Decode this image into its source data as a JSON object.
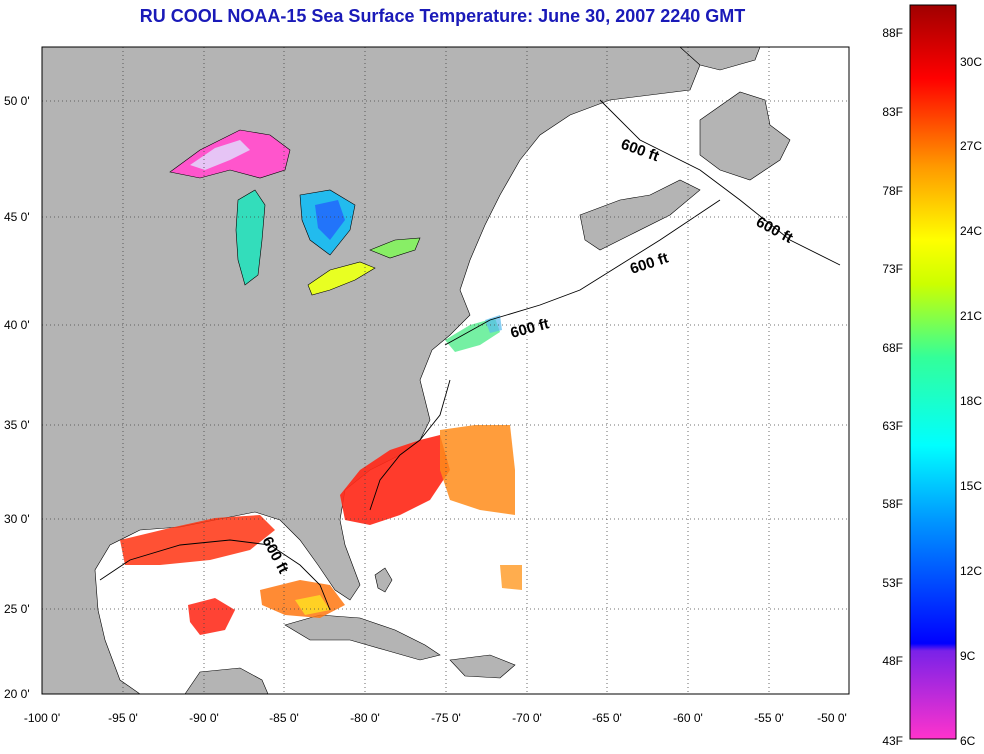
{
  "title": "RU COOL  NOAA-15  Sea Surface Temperature:  June 30, 2007 2240 GMT",
  "lat_ticks": [
    "20 0'",
    "25 0'",
    "30 0'",
    "35 0'",
    "40 0'",
    "45 0'",
    "50 0'"
  ],
  "lon_ticks": [
    "-100 0'",
    "-95 0'",
    "-90 0'",
    "-85 0'",
    "-80 0'",
    "-75 0'",
    "-70 0'",
    "-65 0'",
    "-60 0'",
    "-55 0'",
    "-50 0'"
  ],
  "depth_label": "600 ft",
  "colorbar": {
    "fahrenheit": [
      "43F",
      "48F",
      "53F",
      "58F",
      "63F",
      "68F",
      "73F",
      "78F",
      "83F",
      "88F"
    ],
    "celsius": [
      "6C",
      "9C",
      "12C",
      "15C",
      "18C",
      "21C",
      "24C",
      "27C",
      "30C"
    ]
  },
  "colors": {
    "land": "#b4b4b4",
    "ocean": "#ffffff",
    "title": "#1a1ab8"
  }
}
